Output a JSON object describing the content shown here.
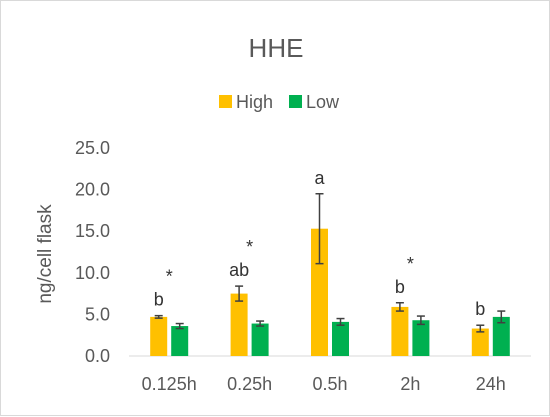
{
  "chart_data": {
    "type": "bar",
    "title": "HHE",
    "xlabel": "",
    "ylabel": "ng/cell flask",
    "ylim": [
      0,
      25
    ],
    "yticks": [
      "0.0",
      "5.0",
      "10.0",
      "15.0",
      "20.0",
      "25.0"
    ],
    "grid": false,
    "legend_position": "top",
    "categories": [
      "0.125h",
      "0.25h",
      "0.5h",
      "2h",
      "24h"
    ],
    "series": [
      {
        "name": "High",
        "color": "#FFC000",
        "values": [
          4.7,
          7.5,
          15.3,
          5.9,
          3.3
        ],
        "error": [
          0.15,
          0.9,
          4.2,
          0.5,
          0.4
        ]
      },
      {
        "name": "Low",
        "color": "#00B050",
        "values": [
          3.6,
          3.9,
          4.1,
          4.3,
          4.7
        ],
        "error": [
          0.3,
          0.3,
          0.4,
          0.5,
          0.7
        ]
      }
    ],
    "annotations": [
      {
        "category": "0.125h",
        "letter": "b",
        "star": "*"
      },
      {
        "category": "0.25h",
        "letter": "ab",
        "star": "*"
      },
      {
        "category": "0.5h",
        "letter": "a",
        "star": ""
      },
      {
        "category": "2h",
        "letter": "b",
        "star": "*"
      },
      {
        "category": "24h",
        "letter": "b",
        "star": ""
      }
    ]
  }
}
